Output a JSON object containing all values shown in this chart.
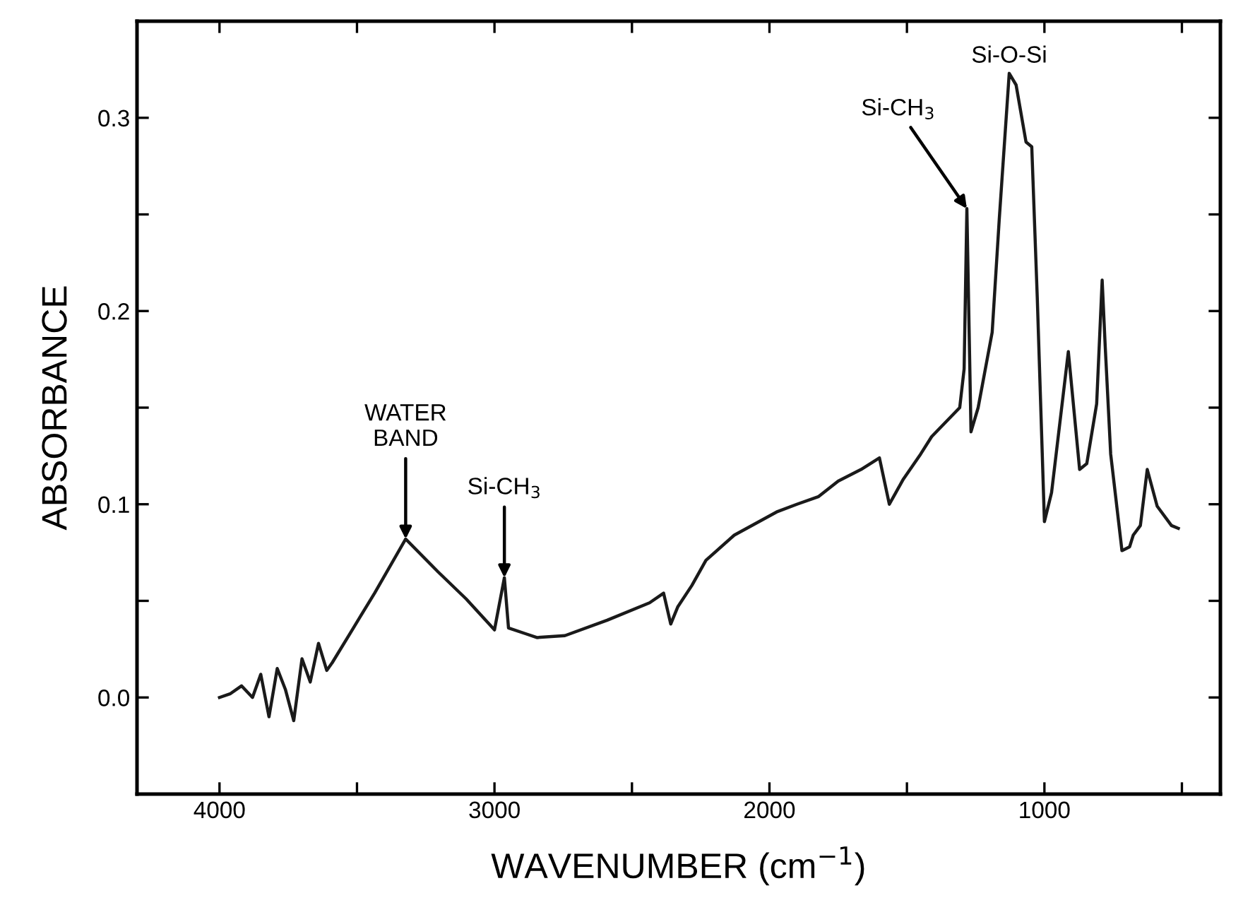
{
  "chart_data": {
    "type": "line",
    "xlabel": "WAVENUMBER (cm$^{−1}$)",
    "ylabel": "ABSORBANCE",
    "xlim": [
      4300,
      360
    ],
    "ylim": [
      -0.05,
      0.35
    ],
    "xticks": [
      4000,
      {
        "value": 3500,
        "label": null
      },
      3000,
      {
        "value": 2500,
        "label": null
      },
      2000,
      {
        "value": 1500,
        "label": null
      },
      1000,
      {
        "value": 500,
        "label": null
      }
    ],
    "yticks": [
      {
        "value": -0.05,
        "label": null
      },
      {
        "value": 0,
        "label": "0.0"
      },
      {
        "value": 0.05,
        "label": null
      },
      {
        "value": 0.1,
        "label": "0.1"
      },
      {
        "value": 0.15,
        "label": null
      },
      {
        "value": 0.2,
        "label": "0.2"
      },
      {
        "value": 0.25,
        "label": null
      },
      {
        "value": 0.3,
        "label": "0.3"
      }
    ],
    "grid": false,
    "legend": false,
    "marker": "none",
    "line_style": "solid",
    "series": [
      {
        "color": "#1a1a1a",
        "x": [
          4000,
          3960,
          3920,
          3880,
          3850,
          3820,
          3790,
          3760,
          3730,
          3700,
          3670,
          3640,
          3610,
          3590,
          3513,
          3436,
          3323,
          3205,
          3103,
          3000,
          2964,
          2949,
          2887,
          2846,
          2744,
          2590,
          2436,
          2385,
          2359,
          2333,
          2282,
          2231,
          2128,
          1974,
          1900,
          1821,
          1750,
          1667,
          1600,
          1564,
          1513,
          1450,
          1410,
          1308,
          1292,
          1282,
          1267,
          1241,
          1190,
          1164,
          1128,
          1103,
          1067,
          1046,
          1026,
          1000,
          974,
          913,
          872,
          846,
          810,
          790,
          779,
          759,
          718,
          690,
          677,
          651,
          626,
          590,
          538,
          513
        ],
        "values": [
          0.0,
          0.002,
          0.006,
          0.0,
          0.012,
          -0.01,
          0.015,
          0.004,
          -0.012,
          0.02,
          0.008,
          0.028,
          0.014,
          0.018,
          0.036,
          0.054,
          0.082,
          0.065,
          0.051,
          0.035,
          0.062,
          0.036,
          0.033,
          0.031,
          0.032,
          0.04,
          0.049,
          0.054,
          0.038,
          0.047,
          0.058,
          0.071,
          0.084,
          0.096,
          0.1,
          0.104,
          0.112,
          0.118,
          0.124,
          0.1,
          0.113,
          0.126,
          0.135,
          0.15,
          0.17,
          0.253,
          0.1375,
          0.15,
          0.189,
          0.248,
          0.323,
          0.317,
          0.2875,
          0.285,
          0.207,
          0.091,
          0.106,
          0.179,
          0.118,
          0.121,
          0.152,
          0.216,
          0.182,
          0.126,
          0.076,
          0.078,
          0.084,
          0.089,
          0.118,
          0.099,
          0.089,
          0.0875
        ]
      }
    ],
    "annotations": [
      {
        "text": "WATER\nBAND",
        "x": 3323,
        "y": 0.082
      },
      {
        "text": "Si-CH$_{3}$",
        "x": 2964,
        "y": 0.062
      },
      {
        "text": "Si-CH$_{3}$",
        "x": 1282,
        "y": 0.253
      },
      {
        "text": "Si-O-Si",
        "x": 1128,
        "y": 0.323
      }
    ]
  }
}
